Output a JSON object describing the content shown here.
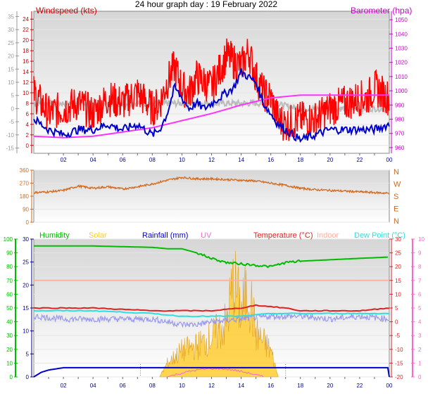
{
  "title": "24 hour graph day : 19 February 2022",
  "colors": {
    "wind_axis": "#cc0000",
    "baro_axis": "#cc00cc",
    "gust": "#ff0000",
    "avg_wind": "#0000cc",
    "baro": "#ff33ff",
    "grey_series": "#bbbbbb",
    "direction": "#d2691e",
    "humidity": "#00bb00",
    "solar": "#ffcc33",
    "rainfall": "#0000cc",
    "uv": "#ff66cc",
    "temperature": "#dd2222",
    "indoor": "#ffb0a0",
    "dew_point": "#33dddd",
    "grey_low": "#9999ee",
    "axis_blue": "#000099"
  },
  "chart_data": [
    {
      "type": "line",
      "panel": "wind_pressure",
      "left_label": "Windspeed (kts)",
      "right_label": "Barometer (hpa)",
      "x_ticks": [
        "02",
        "04",
        "06",
        "08",
        "10",
        "12",
        "14",
        "16",
        "18",
        "20",
        "22",
        "00"
      ],
      "x_range_hours": [
        0,
        24
      ],
      "left_axis_outer": {
        "ticks": [
          -15,
          -10,
          -5,
          0,
          5,
          10,
          15,
          20,
          25,
          30,
          35
        ],
        "ylim": [
          -17,
          37
        ]
      },
      "left_axis_inner": {
        "ticks": [
          0,
          2,
          4,
          6,
          8,
          10,
          12,
          14,
          16,
          18,
          20,
          22,
          24
        ],
        "ylim": [
          -1.5,
          25.5
        ]
      },
      "right_axis": {
        "ticks": [
          960,
          970,
          980,
          990,
          1000,
          1010,
          1020,
          1030,
          1040,
          1050
        ],
        "ylim": [
          956,
          1056
        ]
      },
      "series": [
        {
          "id": "gust_kts",
          "hours": [
            0,
            1,
            2,
            3,
            4,
            5,
            6,
            7,
            8,
            8.5,
            9,
            9.5,
            10,
            10.5,
            11,
            11.5,
            12,
            12.5,
            13,
            13.5,
            14,
            14.5,
            15,
            15.5,
            16,
            16.5,
            17,
            18,
            19,
            20,
            21,
            22,
            22.5,
            23,
            23.5,
            24
          ],
          "values": [
            10,
            6,
            7,
            8,
            6,
            9,
            8,
            10,
            7,
            8,
            12,
            15,
            11,
            10,
            13,
            12,
            11,
            14,
            17,
            16,
            15,
            18,
            13,
            10,
            9,
            5,
            4,
            5,
            5,
            7,
            8,
            9,
            9,
            11,
            10,
            9
          ]
        },
        {
          "id": "avg_wind_kts",
          "hours": [
            0,
            1,
            2,
            3,
            4,
            5,
            6,
            7,
            8,
            8.5,
            9,
            9.5,
            10,
            10.5,
            11,
            11.5,
            12,
            12.5,
            13,
            13.5,
            14,
            14.5,
            15,
            15.5,
            16,
            16.5,
            17,
            18,
            19,
            20,
            21,
            22,
            23,
            24
          ],
          "values": [
            5,
            3,
            2,
            3,
            3,
            4,
            3,
            4,
            2,
            3,
            6,
            11,
            9,
            7,
            8,
            7,
            8,
            9,
            10,
            11,
            14,
            13,
            12,
            8,
            6,
            4,
            3,
            1,
            2,
            3,
            3,
            3,
            3,
            4
          ]
        },
        {
          "id": "barometer_hpa",
          "hours": [
            0,
            2,
            4,
            6,
            8,
            10,
            12,
            14,
            16,
            18,
            20,
            22,
            24
          ],
          "values": [
            968,
            967,
            968,
            971,
            974,
            979,
            984,
            990,
            995,
            997,
            997,
            997,
            997
          ]
        },
        {
          "id": "grey_kts",
          "hours": [
            0,
            2,
            4,
            6,
            8,
            10,
            12,
            14,
            16,
            18,
            20,
            22,
            24
          ],
          "values": [
            8,
            8,
            8,
            8,
            8,
            8,
            8,
            8,
            8,
            7,
            7,
            7,
            7
          ]
        }
      ]
    },
    {
      "type": "line",
      "panel": "direction",
      "left_ticks": [
        0,
        90,
        180,
        270,
        360
      ],
      "ylim": [
        0,
        360
      ],
      "right_labels": [
        "N",
        "W",
        "S",
        "E",
        "N"
      ],
      "series": [
        {
          "id": "wind_direction_deg",
          "hours": [
            0,
            1,
            2,
            3,
            4,
            5,
            6,
            7,
            8,
            9,
            10,
            11,
            12,
            13,
            14,
            15,
            16,
            17,
            18,
            19,
            20,
            21,
            22,
            23,
            24
          ],
          "values": [
            205,
            210,
            220,
            250,
            235,
            245,
            230,
            245,
            265,
            290,
            310,
            300,
            300,
            295,
            290,
            285,
            270,
            255,
            235,
            225,
            220,
            215,
            210,
            205,
            200
          ]
        }
      ]
    },
    {
      "type": "line",
      "panel": "temperature_humidity",
      "legend": [
        "Humidity",
        "Solar",
        "Rainfall (mm)",
        "UV",
        "Temperature (°C)",
        "Indoor",
        "Dew Point (°C)"
      ],
      "left_ticks_outer": [
        0,
        10,
        20,
        30,
        40,
        50,
        60,
        70,
        80,
        90,
        100
      ],
      "left_ticks_inner": [
        0,
        5,
        10,
        15,
        20,
        25,
        30
      ],
      "right_ticks_inner": [
        -20,
        -15,
        -10,
        -5,
        0,
        5,
        10,
        15,
        20,
        25,
        30
      ],
      "right_ticks_outer": [
        0,
        1,
        2,
        3,
        4,
        5,
        6,
        7,
        8,
        9,
        10
      ],
      "series": [
        {
          "id": "humidity_pct",
          "hours": [
            0,
            4,
            8,
            9,
            10,
            11,
            12,
            13,
            14,
            15,
            16,
            17,
            18,
            20,
            22,
            24
          ],
          "values": [
            95,
            95,
            94,
            93,
            93,
            90,
            86,
            83,
            82,
            81,
            80,
            83,
            84,
            85,
            86,
            87
          ]
        },
        {
          "id": "temperature_c",
          "hours": [
            0,
            4,
            8,
            10,
            12,
            14,
            15,
            17,
            18,
            20,
            22,
            24
          ],
          "values": [
            5,
            5,
            4,
            4,
            4,
            5,
            6,
            5,
            4,
            4,
            4,
            5
          ]
        },
        {
          "id": "indoor_c",
          "hours": [
            0,
            12,
            24
          ],
          "values": [
            15,
            15,
            15
          ]
        },
        {
          "id": "dew_point_c",
          "hours": [
            0,
            4,
            8,
            10,
            12,
            14,
            16,
            18,
            20,
            22,
            24
          ],
          "values": [
            4,
            4,
            3,
            2,
            2,
            2,
            3,
            3,
            3,
            3,
            3
          ]
        },
        {
          "id": "grey_low_c",
          "hours": [
            0,
            2,
            4,
            6,
            8,
            9,
            10,
            11,
            12,
            14,
            16,
            18,
            20,
            22,
            24
          ],
          "values": [
            2,
            1,
            1,
            1,
            1,
            0,
            -1,
            -1,
            0,
            1,
            2,
            2,
            1,
            2,
            1
          ]
        },
        {
          "id": "rainfall_mm",
          "hours": [
            0,
            0.5,
            1,
            2,
            3,
            24
          ],
          "values": [
            0,
            1,
            1.5,
            2,
            2,
            2
          ]
        },
        {
          "id": "solar_rel",
          "hours": [
            8.5,
            9,
            10,
            11,
            12,
            13,
            13.5,
            14,
            14.5,
            15,
            16,
            16.5
          ],
          "values": [
            0,
            3,
            6,
            7,
            9,
            12,
            22,
            15,
            20,
            10,
            6,
            0
          ]
        }
      ]
    }
  ]
}
